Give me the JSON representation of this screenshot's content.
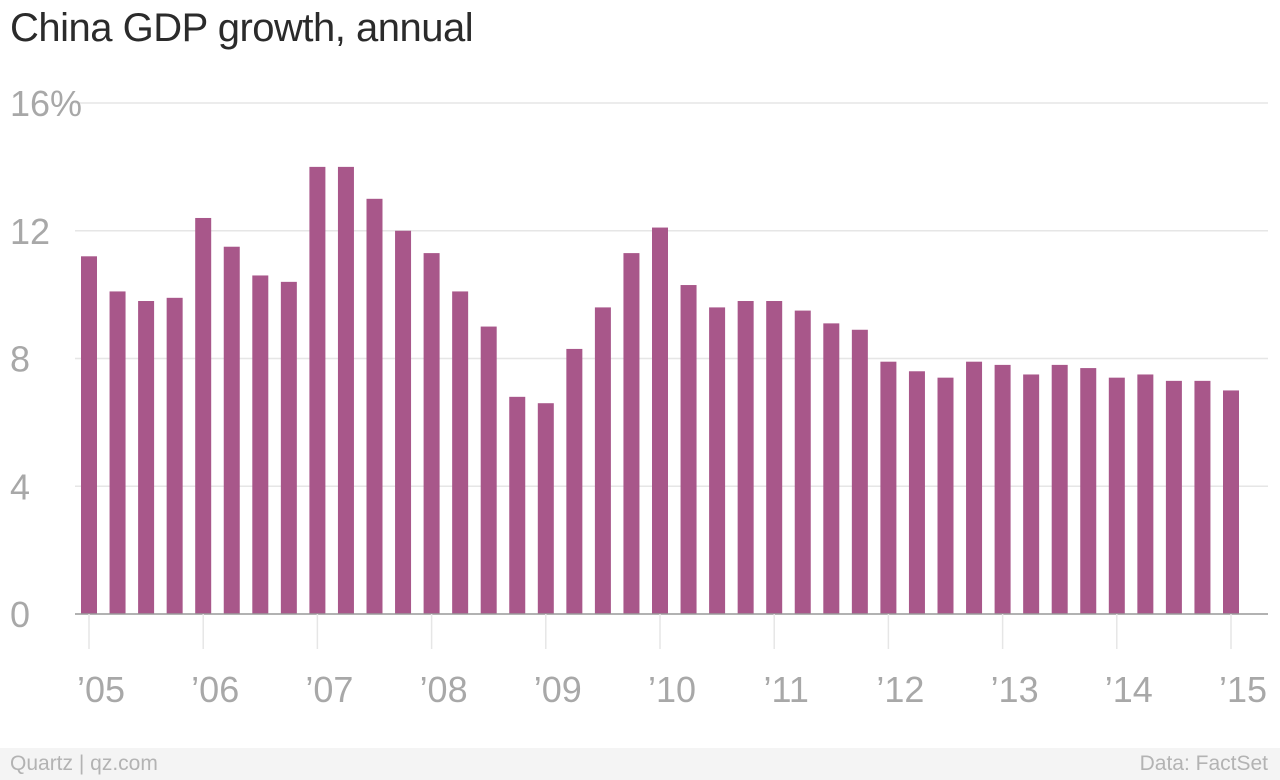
{
  "source": "Quartz | qz.com",
  "credit": "Data: FactSet",
  "colors": {
    "bar": "#a8578a",
    "grid": "#e6e6e6",
    "axis": "#999999",
    "tick_text": "#a8a8a8"
  },
  "chart_data": {
    "type": "bar",
    "title": "China GDP growth, annual",
    "xlabel": "",
    "ylabel": "",
    "ylim": [
      0,
      16
    ],
    "yticks": [
      0,
      4,
      8,
      12,
      16
    ],
    "ytick_labels": [
      "0",
      "4",
      "8",
      "12",
      "16%"
    ],
    "xtick_labels": [
      "’05",
      "’06",
      "’07",
      "’08",
      "’09",
      "’10",
      "’11",
      "’12",
      "’13",
      "’14",
      "’15"
    ],
    "grid": true,
    "legend": "none",
    "categories": [
      "2005 Q1",
      "2005 Q2",
      "2005 Q3",
      "2005 Q4",
      "2006 Q1",
      "2006 Q2",
      "2006 Q3",
      "2006 Q4",
      "2007 Q1",
      "2007 Q2",
      "2007 Q3",
      "2007 Q4",
      "2008 Q1",
      "2008 Q2",
      "2008 Q3",
      "2008 Q4",
      "2009 Q1",
      "2009 Q2",
      "2009 Q3",
      "2009 Q4",
      "2010 Q1",
      "2010 Q2",
      "2010 Q3",
      "2010 Q4",
      "2011 Q1",
      "2011 Q2",
      "2011 Q3",
      "2011 Q4",
      "2012 Q1",
      "2012 Q2",
      "2012 Q3",
      "2012 Q4",
      "2013 Q1",
      "2013 Q2",
      "2013 Q3",
      "2013 Q4",
      "2014 Q1",
      "2014 Q2",
      "2014 Q3",
      "2014 Q4",
      "2015 Q1"
    ],
    "values": [
      11.2,
      10.1,
      9.8,
      9.9,
      12.4,
      11.5,
      10.6,
      10.4,
      14.0,
      14.0,
      13.0,
      12.0,
      11.3,
      10.1,
      9.0,
      6.8,
      6.6,
      8.3,
      9.6,
      11.3,
      12.1,
      10.3,
      9.6,
      9.8,
      9.8,
      9.5,
      9.1,
      8.9,
      7.9,
      7.6,
      7.4,
      7.9,
      7.8,
      7.5,
      7.8,
      7.7,
      7.4,
      7.5,
      7.3,
      7.3,
      7.0
    ]
  }
}
